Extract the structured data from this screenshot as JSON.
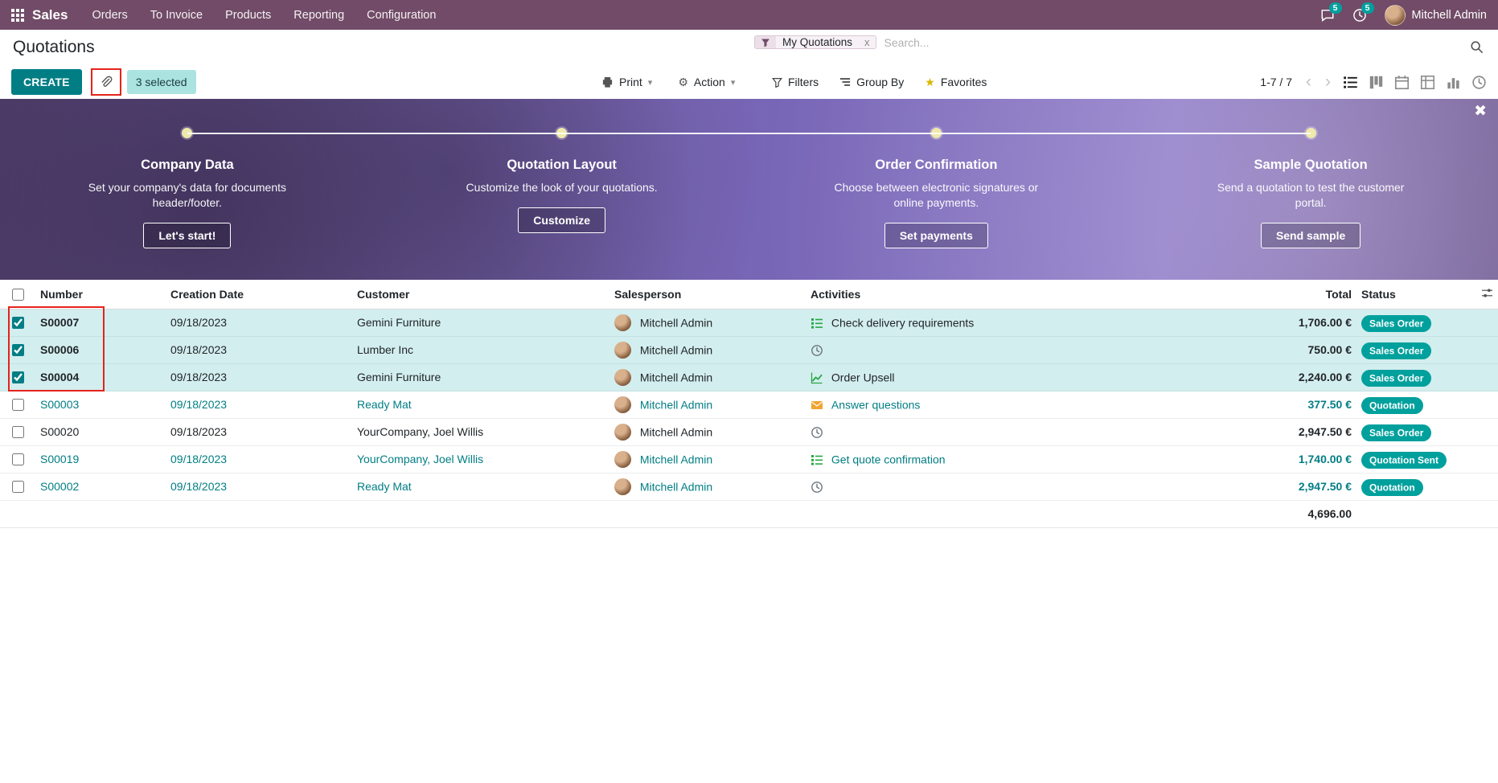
{
  "navbar": {
    "brand": "Sales",
    "menus": [
      "Orders",
      "To Invoice",
      "Products",
      "Reporting",
      "Configuration"
    ],
    "messages_badge": "5",
    "activities_badge": "5",
    "user_name": "Mitchell Admin"
  },
  "header": {
    "title": "Quotations",
    "search_facet": "My Quotations",
    "facet_remove": "x",
    "search_placeholder": "Search..."
  },
  "controls": {
    "create": "CREATE",
    "selected": "3 selected",
    "print": "Print",
    "action": "Action",
    "filters": "Filters",
    "group_by": "Group By",
    "favorites": "Favorites",
    "pager": "1-7 / 7"
  },
  "onboarding": {
    "close": "✖",
    "steps": [
      {
        "title": "Company Data",
        "desc": "Set your company's data for documents header/footer.",
        "button": "Let's start!"
      },
      {
        "title": "Quotation Layout",
        "desc": "Customize the look of your quotations.",
        "button": "Customize"
      },
      {
        "title": "Order Confirmation",
        "desc": "Choose between electronic signatures or online payments.",
        "button": "Set payments"
      },
      {
        "title": "Sample Quotation",
        "desc": "Send a quotation to test the customer portal.",
        "button": "Send sample"
      }
    ]
  },
  "table": {
    "headers": {
      "number": "Number",
      "date": "Creation Date",
      "customer": "Customer",
      "salesperson": "Salesperson",
      "activities": "Activities",
      "total": "Total",
      "status": "Status"
    },
    "rows": [
      {
        "number": "S00007",
        "date": "09/18/2023",
        "customer": "Gemini Furniture",
        "salesperson": "Mitchell Admin",
        "activity_icon": "tasks-icon",
        "activity": "Check delivery requirements",
        "total": "1,706.00 €",
        "status": "Sales Order",
        "checked": true,
        "selected": true,
        "teal": false
      },
      {
        "number": "S00006",
        "date": "09/18/2023",
        "customer": "Lumber Inc",
        "salesperson": "Mitchell Admin",
        "activity_icon": "clock-icon",
        "activity": "",
        "total": "750.00 €",
        "status": "Sales Order",
        "checked": true,
        "selected": true,
        "teal": false
      },
      {
        "number": "S00004",
        "date": "09/18/2023",
        "customer": "Gemini Furniture",
        "salesperson": "Mitchell Admin",
        "activity_icon": "chart-icon",
        "activity": "Order Upsell",
        "total": "2,240.00 €",
        "status": "Sales Order",
        "checked": true,
        "selected": true,
        "teal": false
      },
      {
        "number": "S00003",
        "date": "09/18/2023",
        "customer": "Ready Mat",
        "salesperson": "Mitchell Admin",
        "activity_icon": "envelope-icon",
        "activity": "Answer questions",
        "total": "377.50 €",
        "status": "Quotation",
        "checked": false,
        "selected": false,
        "teal": true
      },
      {
        "number": "S00020",
        "date": "09/18/2023",
        "customer": "YourCompany, Joel Willis",
        "salesperson": "Mitchell Admin",
        "activity_icon": "clock-icon",
        "activity": "",
        "total": "2,947.50 €",
        "status": "Sales Order",
        "checked": false,
        "selected": false,
        "teal": false
      },
      {
        "number": "S00019",
        "date": "09/18/2023",
        "customer": "YourCompany, Joel Willis",
        "salesperson": "Mitchell Admin",
        "activity_icon": "tasks-icon",
        "activity": "Get quote confirmation",
        "total": "1,740.00 €",
        "status": "Quotation Sent",
        "checked": false,
        "selected": false,
        "teal": true
      },
      {
        "number": "S00002",
        "date": "09/18/2023",
        "customer": "Ready Mat",
        "salesperson": "Mitchell Admin",
        "activity_icon": "clock-icon",
        "activity": "",
        "total": "2,947.50 €",
        "status": "Quotation",
        "checked": false,
        "selected": false,
        "teal": true
      }
    ],
    "footer_total": "4,696.00"
  },
  "colors": {
    "navbar_bg": "#714B67",
    "primary_teal": "#017e84",
    "badge_teal": "#00A09D",
    "selected_row_bg": "#d3eeee",
    "annotation_red": "#e5231b",
    "banner_purple": "#7765b6"
  }
}
